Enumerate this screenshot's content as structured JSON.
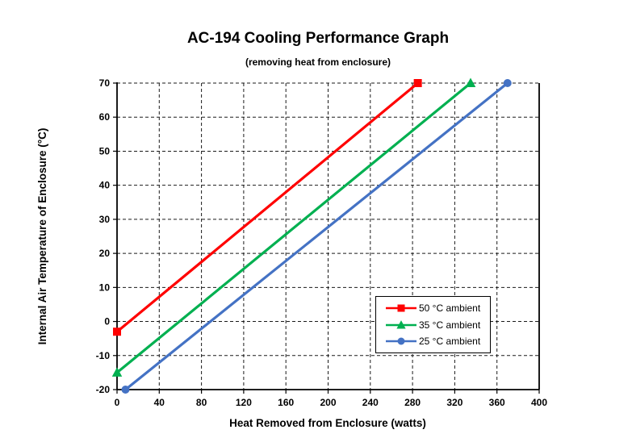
{
  "chart_data": {
    "type": "line",
    "title": "AC-194 Cooling Performance Graph",
    "subtitle": "(removing heat from enclosure)",
    "xlabel": "Heat Removed from Enclosure (watts)",
    "ylabel": "Internal Air Temperature of Enclosure (°C)",
    "xlim": [
      0,
      400
    ],
    "ylim": [
      -20,
      70
    ],
    "xticks": [
      0,
      40,
      80,
      120,
      160,
      200,
      240,
      280,
      320,
      360,
      400
    ],
    "yticks": [
      -20,
      -10,
      0,
      10,
      20,
      30,
      40,
      50,
      60,
      70
    ],
    "grid": true,
    "gridline_style": "dashed",
    "legend_position": "inside-lower-right",
    "series": [
      {
        "name": "50 °C ambient",
        "color": "#FF0000",
        "marker": "square",
        "points": [
          [
            0,
            -3
          ],
          [
            285,
            70
          ]
        ]
      },
      {
        "name": "35 °C ambient",
        "color": "#00B050",
        "marker": "triangle",
        "points": [
          [
            0,
            -15
          ],
          [
            335,
            70
          ]
        ]
      },
      {
        "name": "25 °C ambient",
        "color": "#4472C4",
        "marker": "circle",
        "points": [
          [
            8,
            -20
          ],
          [
            370,
            70
          ]
        ]
      }
    ]
  }
}
